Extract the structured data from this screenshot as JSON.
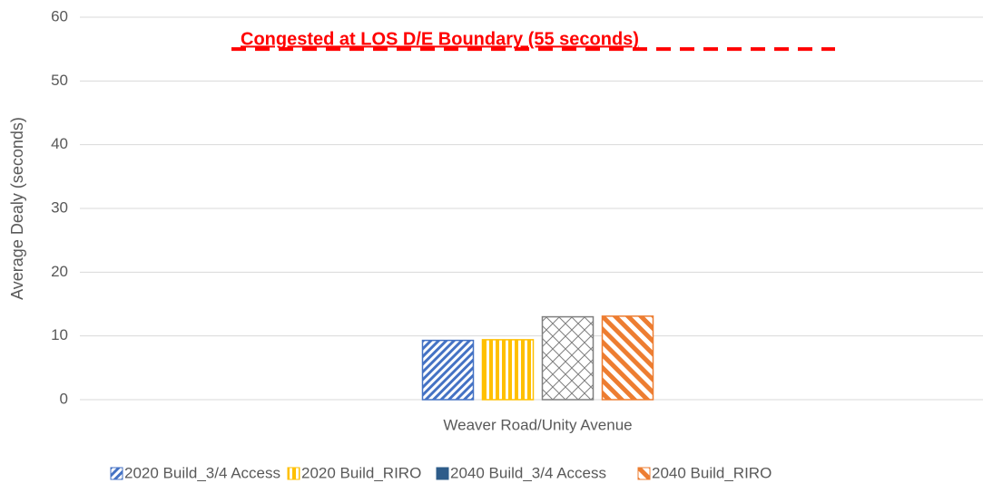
{
  "chart_data": {
    "type": "bar",
    "y_axis_label": "Average Dealy (seconds)",
    "categories": [
      "Weaver Road/Unity Avenue"
    ],
    "series": [
      {
        "name": "2020 Build_3/4 Access",
        "color": "#4472c4",
        "legend_color": "#4472c4",
        "values": [
          9.3
        ]
      },
      {
        "name": "2020 Build_RIRO",
        "color": "#ffc000",
        "legend_color": "#ffc000",
        "values": [
          9.4
        ]
      },
      {
        "name": "2040 Build_3/4 Access",
        "color": "#7f7f7f",
        "legend_color": "#2e5c8a",
        "values": [
          13.0
        ]
      },
      {
        "name": "2040 Build_RIRO",
        "color": "#ed7d31",
        "legend_color": "#ed7d31",
        "values": [
          13.1
        ]
      }
    ],
    "ylim": [
      0,
      60
    ],
    "yticks": [
      0,
      10,
      20,
      30,
      40,
      50,
      60
    ],
    "grid": true,
    "threshold": {
      "label": "Congested at LOS D/E Boundary (55 seconds)",
      "value": 55,
      "color": "#ff0000"
    },
    "legend": "bottom"
  }
}
